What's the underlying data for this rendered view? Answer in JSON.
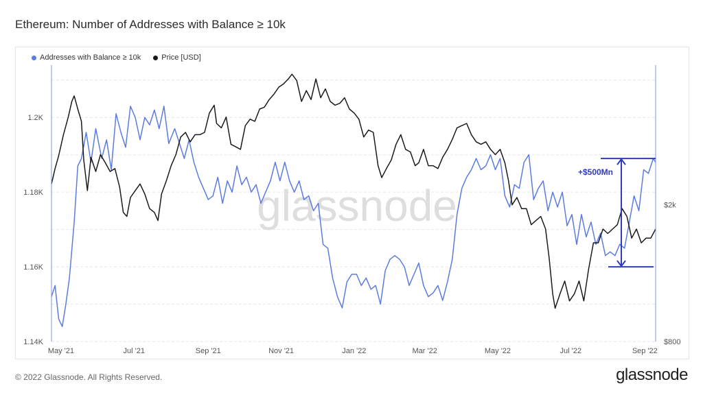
{
  "title": "Ethereum: Number of Addresses with Balance ≥ 10k",
  "footer": "© 2022 Glassnode. All Rights Reserved.",
  "brand": "glassnode",
  "watermark": "glassnode",
  "colors": {
    "addresses": "#5b7be0",
    "price": "#1a1a1a",
    "annotation": "#2f3bbd"
  },
  "chart_data": {
    "type": "line",
    "legend": [
      {
        "name": "Addresses with Balance ≥ 10k",
        "color": "#5b7be0"
      },
      {
        "name": "Price [USD]",
        "color": "#1a1a1a"
      }
    ],
    "x_ticks": [
      "May '21",
      "Jul '21",
      "Sep '21",
      "Nov '21",
      "Jan '22",
      "Mar '22",
      "May '22",
      "Jul '22",
      "Sep '22"
    ],
    "x_range": [
      "2021-04-23",
      "2022-09-10"
    ],
    "y_left": {
      "ticks": [
        "1.14K",
        "1.16K",
        "1.18K",
        "1.2K"
      ],
      "range": [
        1140,
        1214
      ]
    },
    "y_right": {
      "scale": "log",
      "ticks": [
        "$800",
        "$2k"
      ],
      "range": [
        800,
        5100
      ]
    },
    "annotation": "+$500Mn",
    "series": [
      {
        "name": "Addresses with Balance ≥ 10k",
        "axis": "left",
        "points": [
          [
            "2021-04-23",
            1152
          ],
          [
            "2021-04-26",
            1155
          ],
          [
            "2021-04-29",
            1146
          ],
          [
            "2021-05-02",
            1144
          ],
          [
            "2021-05-05",
            1150
          ],
          [
            "2021-05-08",
            1157
          ],
          [
            "2021-05-12",
            1172
          ],
          [
            "2021-05-15",
            1187
          ],
          [
            "2021-05-18",
            1189
          ],
          [
            "2021-05-22",
            1196
          ],
          [
            "2021-05-26",
            1188
          ],
          [
            "2021-05-30",
            1197
          ],
          [
            "2021-06-04",
            1189
          ],
          [
            "2021-06-08",
            1194
          ],
          [
            "2021-06-12",
            1186
          ],
          [
            "2021-06-16",
            1201
          ],
          [
            "2021-06-20",
            1196
          ],
          [
            "2021-06-24",
            1192
          ],
          [
            "2021-06-28",
            1203
          ],
          [
            "2021-07-02",
            1200
          ],
          [
            "2021-07-06",
            1194
          ],
          [
            "2021-07-10",
            1200
          ],
          [
            "2021-07-14",
            1198
          ],
          [
            "2021-07-18",
            1202
          ],
          [
            "2021-07-22",
            1197
          ],
          [
            "2021-07-26",
            1203
          ],
          [
            "2021-07-30",
            1193
          ],
          [
            "2021-08-04",
            1197
          ],
          [
            "2021-08-08",
            1193
          ],
          [
            "2021-08-12",
            1189
          ],
          [
            "2021-08-16",
            1194
          ],
          [
            "2021-08-20",
            1188
          ],
          [
            "2021-08-24",
            1184
          ],
          [
            "2021-08-28",
            1181
          ],
          [
            "2021-09-01",
            1178
          ],
          [
            "2021-09-05",
            1179
          ],
          [
            "2021-09-09",
            1184
          ],
          [
            "2021-09-13",
            1177
          ],
          [
            "2021-09-17",
            1183
          ],
          [
            "2021-09-21",
            1180
          ],
          [
            "2021-09-25",
            1187
          ],
          [
            "2021-09-29",
            1182
          ],
          [
            "2021-10-03",
            1184
          ],
          [
            "2021-10-07",
            1180
          ],
          [
            "2021-10-11",
            1182
          ],
          [
            "2021-10-15",
            1177
          ],
          [
            "2021-10-19",
            1180
          ],
          [
            "2021-10-23",
            1183
          ],
          [
            "2021-10-27",
            1188
          ],
          [
            "2021-10-31",
            1183
          ],
          [
            "2021-11-04",
            1188
          ],
          [
            "2021-11-08",
            1183
          ],
          [
            "2021-11-12",
            1180
          ],
          [
            "2021-11-16",
            1183
          ],
          [
            "2021-11-20",
            1178
          ],
          [
            "2021-11-24",
            1179
          ],
          [
            "2021-11-28",
            1175
          ],
          [
            "2021-12-02",
            1177
          ],
          [
            "2021-12-06",
            1166
          ],
          [
            "2021-12-10",
            1165
          ],
          [
            "2021-12-14",
            1157
          ],
          [
            "2021-12-18",
            1152
          ],
          [
            "2021-12-22",
            1149
          ],
          [
            "2021-12-26",
            1156
          ],
          [
            "2021-12-30",
            1158
          ],
          [
            "2022-01-03",
            1158
          ],
          [
            "2022-01-07",
            1155
          ],
          [
            "2022-01-11",
            1157
          ],
          [
            "2022-01-15",
            1154
          ],
          [
            "2022-01-19",
            1155
          ],
          [
            "2022-01-23",
            1150
          ],
          [
            "2022-01-27",
            1159
          ],
          [
            "2022-01-31",
            1162
          ],
          [
            "2022-02-04",
            1163
          ],
          [
            "2022-02-08",
            1162
          ],
          [
            "2022-02-12",
            1160
          ],
          [
            "2022-02-16",
            1155
          ],
          [
            "2022-02-20",
            1158
          ],
          [
            "2022-02-24",
            1161
          ],
          [
            "2022-02-28",
            1155
          ],
          [
            "2022-03-04",
            1152
          ],
          [
            "2022-03-08",
            1153
          ],
          [
            "2022-03-12",
            1155
          ],
          [
            "2022-03-16",
            1151
          ],
          [
            "2022-03-20",
            1156
          ],
          [
            "2022-03-24",
            1162
          ],
          [
            "2022-03-28",
            1174
          ],
          [
            "2022-04-01",
            1181
          ],
          [
            "2022-04-05",
            1184
          ],
          [
            "2022-04-09",
            1186
          ],
          [
            "2022-04-13",
            1189
          ],
          [
            "2022-04-17",
            1186
          ],
          [
            "2022-04-21",
            1187
          ],
          [
            "2022-04-25",
            1190
          ],
          [
            "2022-04-29",
            1186
          ],
          [
            "2022-05-03",
            1189
          ],
          [
            "2022-05-07",
            1179
          ],
          [
            "2022-05-11",
            1176
          ],
          [
            "2022-05-15",
            1182
          ],
          [
            "2022-05-19",
            1181
          ],
          [
            "2022-05-23",
            1188
          ],
          [
            "2022-05-27",
            1190
          ],
          [
            "2022-05-31",
            1178
          ],
          [
            "2022-06-04",
            1181
          ],
          [
            "2022-06-08",
            1183
          ],
          [
            "2022-06-12",
            1175
          ],
          [
            "2022-06-16",
            1180
          ],
          [
            "2022-06-20",
            1176
          ],
          [
            "2022-06-24",
            1180
          ],
          [
            "2022-06-28",
            1171
          ],
          [
            "2022-07-02",
            1174
          ],
          [
            "2022-07-06",
            1166
          ],
          [
            "2022-07-10",
            1174
          ],
          [
            "2022-07-14",
            1168
          ],
          [
            "2022-07-18",
            1172
          ],
          [
            "2022-07-22",
            1166
          ],
          [
            "2022-07-26",
            1169
          ],
          [
            "2022-07-30",
            1163
          ],
          [
            "2022-08-03",
            1164
          ],
          [
            "2022-08-07",
            1163
          ],
          [
            "2022-08-11",
            1166
          ],
          [
            "2022-08-15",
            1165
          ],
          [
            "2022-08-19",
            1172
          ],
          [
            "2022-08-23",
            1179
          ],
          [
            "2022-08-27",
            1175
          ],
          [
            "2022-08-31",
            1186
          ],
          [
            "2022-09-04",
            1185
          ],
          [
            "2022-09-08",
            1189
          ],
          [
            "2022-09-10",
            1188
          ]
        ]
      },
      {
        "name": "Price [USD]",
        "axis": "right",
        "points": [
          [
            "2021-04-23",
            2300
          ],
          [
            "2021-04-26",
            2550
          ],
          [
            "2021-04-29",
            2780
          ],
          [
            "2021-05-03",
            3200
          ],
          [
            "2021-05-07",
            3600
          ],
          [
            "2021-05-10",
            4000
          ],
          [
            "2021-05-12",
            4150
          ],
          [
            "2021-05-15",
            3800
          ],
          [
            "2021-05-18",
            3500
          ],
          [
            "2021-05-20",
            2700
          ],
          [
            "2021-05-23",
            2200
          ],
          [
            "2021-05-26",
            2750
          ],
          [
            "2021-05-30",
            2500
          ],
          [
            "2021-06-03",
            2800
          ],
          [
            "2021-06-07",
            2650
          ],
          [
            "2021-06-11",
            2500
          ],
          [
            "2021-06-15",
            2550
          ],
          [
            "2021-06-19",
            2250
          ],
          [
            "2021-06-22",
            1900
          ],
          [
            "2021-06-25",
            1850
          ],
          [
            "2021-06-28",
            2100
          ],
          [
            "2021-07-02",
            2200
          ],
          [
            "2021-07-06",
            2300
          ],
          [
            "2021-07-10",
            2150
          ],
          [
            "2021-07-14",
            1950
          ],
          [
            "2021-07-18",
            1900
          ],
          [
            "2021-07-21",
            1800
          ],
          [
            "2021-07-24",
            2150
          ],
          [
            "2021-07-28",
            2350
          ],
          [
            "2021-08-01",
            2600
          ],
          [
            "2021-08-05",
            2800
          ],
          [
            "2021-08-09",
            3150
          ],
          [
            "2021-08-13",
            3250
          ],
          [
            "2021-08-17",
            3050
          ],
          [
            "2021-08-21",
            3200
          ],
          [
            "2021-08-25",
            3200
          ],
          [
            "2021-08-29",
            3250
          ],
          [
            "2021-09-02",
            3700
          ],
          [
            "2021-09-06",
            3900
          ],
          [
            "2021-09-08",
            3450
          ],
          [
            "2021-09-12",
            3350
          ],
          [
            "2021-09-16",
            3600
          ],
          [
            "2021-09-20",
            3000
          ],
          [
            "2021-09-24",
            2950
          ],
          [
            "2021-09-28",
            2900
          ],
          [
            "2021-10-02",
            3400
          ],
          [
            "2021-10-06",
            3550
          ],
          [
            "2021-10-10",
            3500
          ],
          [
            "2021-10-14",
            3800
          ],
          [
            "2021-10-18",
            3850
          ],
          [
            "2021-10-22",
            4050
          ],
          [
            "2021-10-26",
            4200
          ],
          [
            "2021-10-30",
            4400
          ],
          [
            "2021-11-03",
            4500
          ],
          [
            "2021-11-07",
            4650
          ],
          [
            "2021-11-10",
            4800
          ],
          [
            "2021-11-14",
            4600
          ],
          [
            "2021-11-18",
            4000
          ],
          [
            "2021-11-22",
            4300
          ],
          [
            "2021-11-26",
            4050
          ],
          [
            "2021-11-30",
            4650
          ],
          [
            "2021-12-04",
            4100
          ],
          [
            "2021-12-08",
            4350
          ],
          [
            "2021-12-12",
            4000
          ],
          [
            "2021-12-16",
            3900
          ],
          [
            "2021-12-20",
            3950
          ],
          [
            "2021-12-24",
            4100
          ],
          [
            "2021-12-28",
            3800
          ],
          [
            "2022-01-01",
            3700
          ],
          [
            "2022-01-05",
            3550
          ],
          [
            "2022-01-09",
            3150
          ],
          [
            "2022-01-13",
            3300
          ],
          [
            "2022-01-17",
            3250
          ],
          [
            "2022-01-21",
            2600
          ],
          [
            "2022-01-24",
            2400
          ],
          [
            "2022-01-28",
            2550
          ],
          [
            "2022-02-01",
            2700
          ],
          [
            "2022-02-05",
            3000
          ],
          [
            "2022-02-09",
            3200
          ],
          [
            "2022-02-13",
            2900
          ],
          [
            "2022-02-17",
            2850
          ],
          [
            "2022-02-21",
            2600
          ],
          [
            "2022-02-24",
            2650
          ],
          [
            "2022-02-28",
            2900
          ],
          [
            "2022-03-04",
            2600
          ],
          [
            "2022-03-08",
            2600
          ],
          [
            "2022-03-12",
            2550
          ],
          [
            "2022-03-16",
            2750
          ],
          [
            "2022-03-20",
            2900
          ],
          [
            "2022-03-24",
            3100
          ],
          [
            "2022-03-28",
            3350
          ],
          [
            "2022-04-01",
            3400
          ],
          [
            "2022-04-05",
            3450
          ],
          [
            "2022-04-09",
            3200
          ],
          [
            "2022-04-13",
            3050
          ],
          [
            "2022-04-17",
            3000
          ],
          [
            "2022-04-21",
            3050
          ],
          [
            "2022-04-25",
            2900
          ],
          [
            "2022-04-29",
            2800
          ],
          [
            "2022-05-03",
            2900
          ],
          [
            "2022-05-07",
            2650
          ],
          [
            "2022-05-10",
            2350
          ],
          [
            "2022-05-13",
            2000
          ],
          [
            "2022-05-17",
            2100
          ],
          [
            "2022-05-21",
            1950
          ],
          [
            "2022-05-25",
            1950
          ],
          [
            "2022-05-29",
            1750
          ],
          [
            "2022-06-02",
            1800
          ],
          [
            "2022-06-06",
            1850
          ],
          [
            "2022-06-10",
            1700
          ],
          [
            "2022-06-13",
            1400
          ],
          [
            "2022-06-16",
            1100
          ],
          [
            "2022-06-18",
            1000
          ],
          [
            "2022-06-22",
            1100
          ],
          [
            "2022-06-26",
            1200
          ],
          [
            "2022-06-30",
            1050
          ],
          [
            "2022-07-04",
            1100
          ],
          [
            "2022-07-08",
            1200
          ],
          [
            "2022-07-12",
            1050
          ],
          [
            "2022-07-16",
            1300
          ],
          [
            "2022-07-20",
            1550
          ],
          [
            "2022-07-24",
            1550
          ],
          [
            "2022-07-28",
            1700
          ],
          [
            "2022-08-01",
            1650
          ],
          [
            "2022-08-05",
            1700
          ],
          [
            "2022-08-09",
            1750
          ],
          [
            "2022-08-13",
            1950
          ],
          [
            "2022-08-17",
            1850
          ],
          [
            "2022-08-21",
            1600
          ],
          [
            "2022-08-25",
            1700
          ],
          [
            "2022-08-29",
            1550
          ],
          [
            "2022-09-02",
            1600
          ],
          [
            "2022-09-06",
            1600
          ],
          [
            "2022-09-08",
            1650
          ],
          [
            "2022-09-10",
            1700
          ]
        ]
      }
    ]
  }
}
